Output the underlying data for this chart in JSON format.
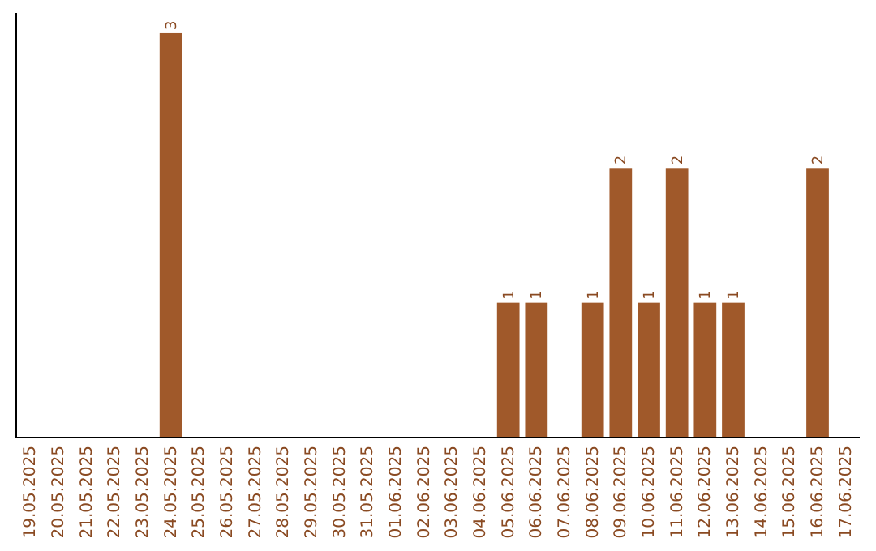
{
  "chart_data": {
    "type": "bar",
    "categories": [
      "19.05.2025",
      "20.05.2025",
      "21.05.2025",
      "22.05.2025",
      "23.05.2025",
      "24.05.2025",
      "25.05.2025",
      "26.05.2025",
      "27.05.2025",
      "28.05.2025",
      "29.05.2025",
      "30.05.2025",
      "31.05.2025",
      "01.06.2025",
      "02.06.2025",
      "03.06.2025",
      "04.06.2025",
      "05.06.2025",
      "06.06.2025",
      "07.06.2025",
      "08.06.2025",
      "09.06.2025",
      "10.06.2025",
      "11.06.2025",
      "12.06.2025",
      "13.06.2025",
      "14.06.2025",
      "15.06.2025",
      "16.06.2025",
      "17.06.2025"
    ],
    "values": [
      0,
      0,
      0,
      0,
      0,
      3,
      0,
      0,
      0,
      0,
      0,
      0,
      0,
      0,
      0,
      0,
      0,
      1,
      1,
      0,
      1,
      2,
      1,
      2,
      1,
      1,
      0,
      0,
      2,
      0
    ],
    "value_labels": [
      null,
      null,
      null,
      null,
      null,
      "3",
      null,
      null,
      null,
      null,
      null,
      null,
      null,
      null,
      null,
      null,
      null,
      "1",
      "1",
      null,
      "1",
      "2",
      "1",
      "2",
      "1",
      "1",
      null,
      null,
      "2",
      null
    ],
    "color": "#a0592a",
    "ylim": [
      0,
      3.15
    ],
    "tick_labels": "x"
  }
}
